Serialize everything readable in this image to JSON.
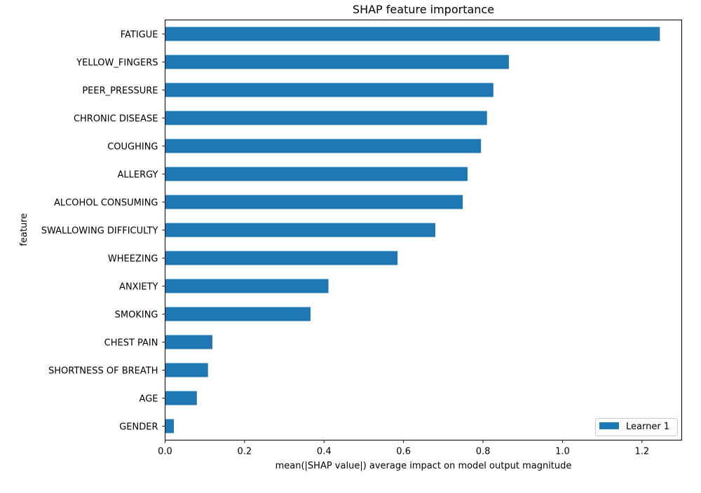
{
  "chart_data": {
    "type": "bar",
    "orientation": "horizontal",
    "title": "SHAP feature importance",
    "xlabel": "mean(|SHAP value|) average impact on model output magnitude",
    "ylabel": "feature",
    "xlim": [
      0,
      1.3
    ],
    "xticks": [
      0.0,
      0.2,
      0.4,
      0.6,
      0.8,
      1.0,
      1.2
    ],
    "xtick_labels": [
      "0.0",
      "0.2",
      "0.4",
      "0.6",
      "0.8",
      "1.0",
      "1.2"
    ],
    "grid": false,
    "legend_position": "bottom-right",
    "categories": [
      "FATIGUE ",
      "YELLOW_FINGERS",
      "PEER_PRESSURE",
      "CHRONIC DISEASE",
      "COUGHING",
      "ALLERGY ",
      "ALCOHOL CONSUMING",
      "SWALLOWING DIFFICULTY",
      "WHEEZING",
      "ANXIETY",
      "SMOKING",
      "CHEST PAIN",
      "SHORTNESS OF BREATH",
      "AGE",
      "GENDER"
    ],
    "series": [
      {
        "name": "Learner 1",
        "color": "#1f77b4",
        "values": [
          1.245,
          0.865,
          0.826,
          0.81,
          0.795,
          0.761,
          0.749,
          0.68,
          0.585,
          0.411,
          0.366,
          0.119,
          0.108,
          0.08,
          0.022
        ]
      }
    ]
  }
}
